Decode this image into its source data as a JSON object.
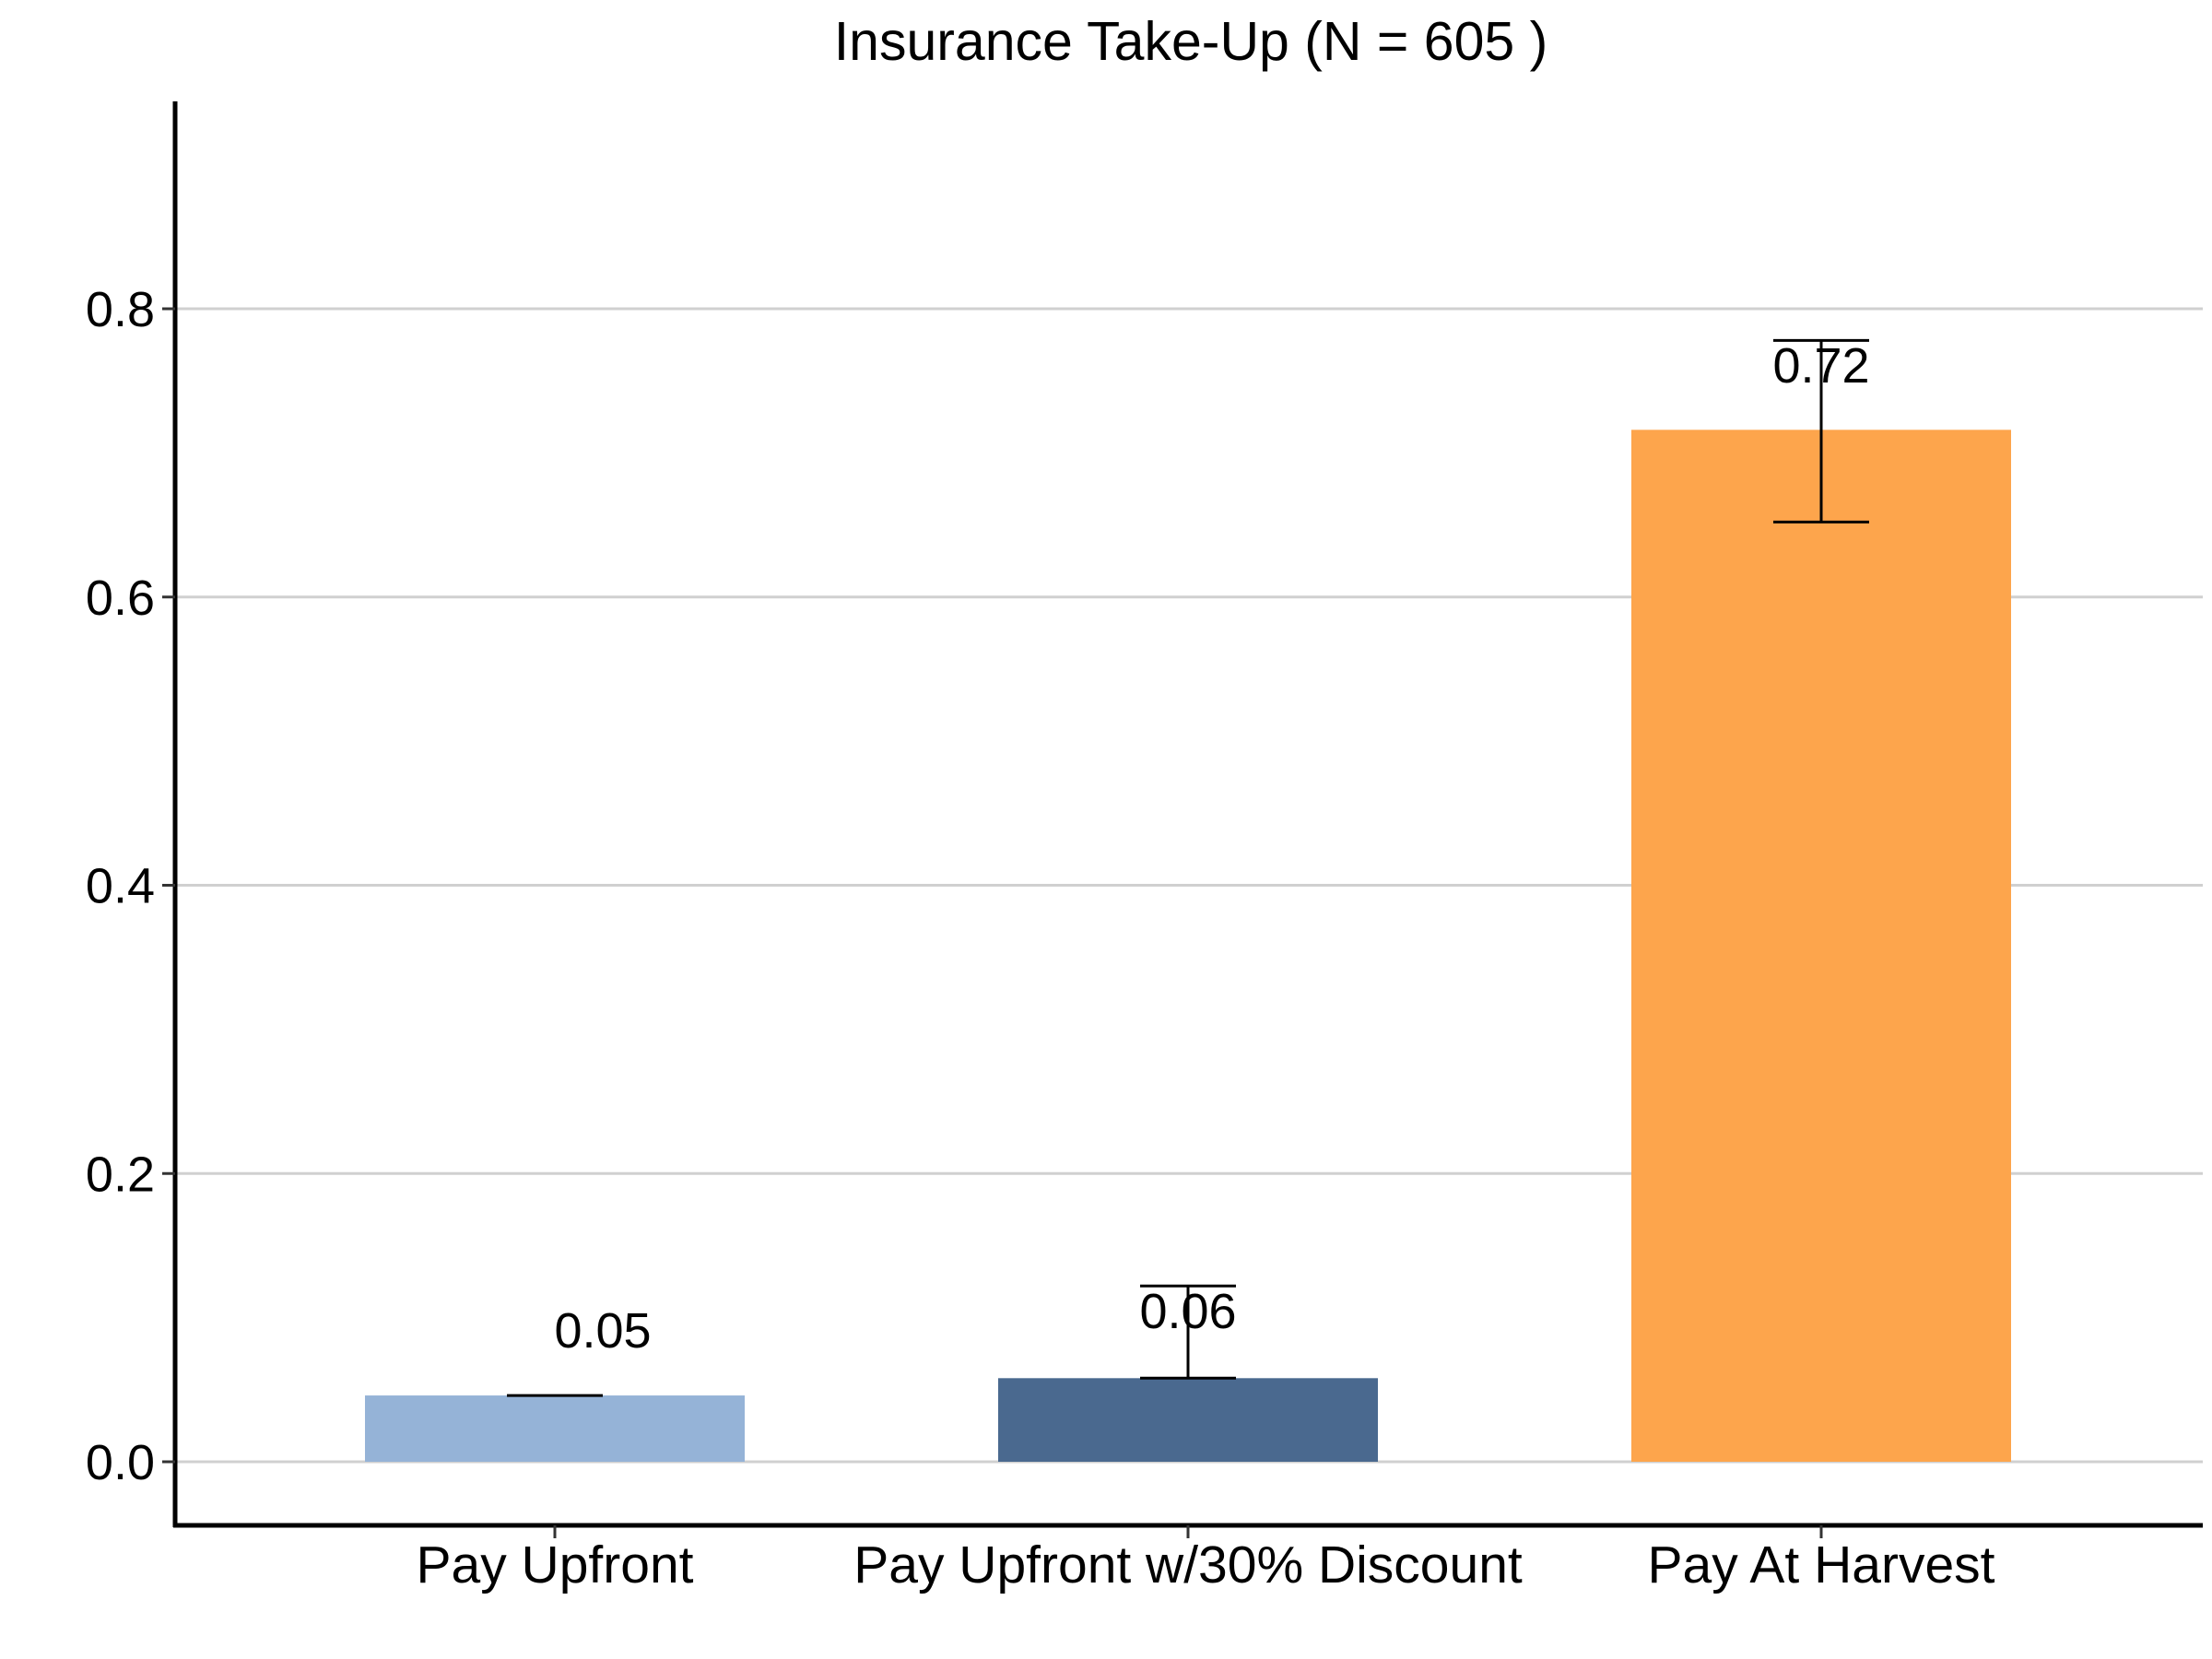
{
  "chart_data": {
    "type": "bar",
    "title": "Insurance Take-Up (N = 605 )",
    "xlabel": "",
    "ylabel": "",
    "categories": [
      "Pay Upfront",
      "Pay Upfront w/30% Discount",
      "Pay At Harvest"
    ],
    "values": [
      0.046,
      0.058,
      0.716
    ],
    "data_labels": [
      "0.05",
      "0.06",
      "0.72"
    ],
    "error_bars": [
      {
        "low": 0.046,
        "high": 0.046
      },
      {
        "low": 0.058,
        "high": 0.122
      },
      {
        "low": 0.652,
        "high": 0.778
      }
    ],
    "colors": [
      "#95B3D7",
      "#4A698F",
      "#FDA54C"
    ],
    "ylim": [
      -0.04,
      0.945
    ],
    "yticks": [
      0.0,
      0.2,
      0.4,
      0.6,
      0.8
    ],
    "ytick_labels": [
      "0.0",
      "0.2",
      "0.4",
      "0.6",
      "0.8"
    ],
    "grid": "horizontal",
    "legend": "none"
  }
}
